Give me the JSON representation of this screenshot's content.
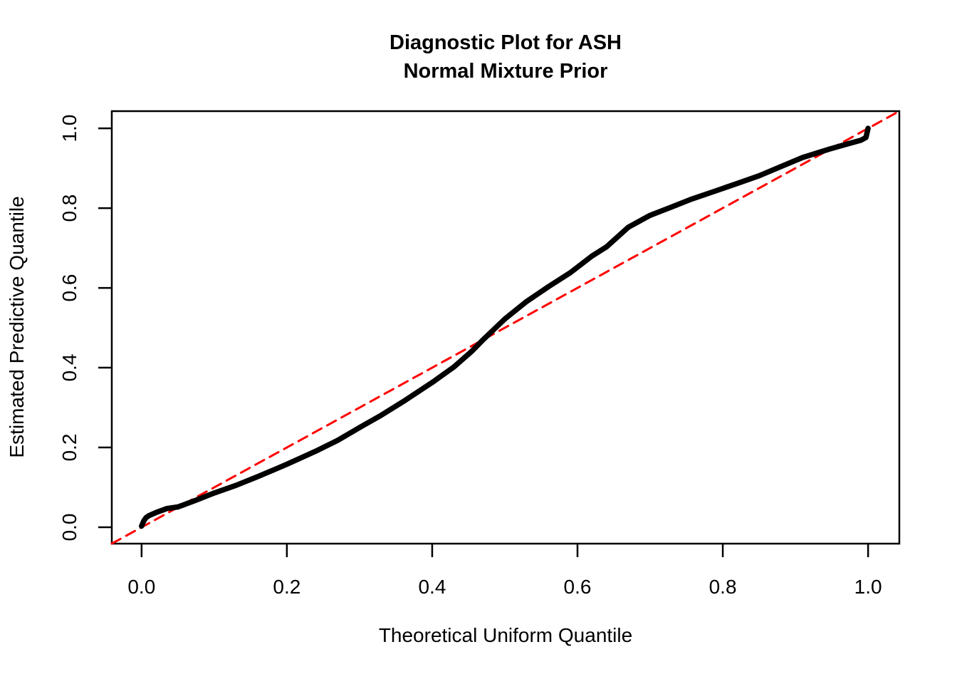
{
  "figure": {
    "background_color": "#FFFFFF",
    "axis_color": "#000000",
    "text_color": "#000000"
  },
  "chart_data": {
    "type": "line",
    "title": "Diagnostic Plot for ASH",
    "subtitle": "Normal Mixture Prior",
    "xlabel": "Theoretical Uniform Quantile",
    "ylabel": "Estimated Predictive Quantile",
    "xlim": [
      -0.041,
      1.043
    ],
    "ylim": [
      -0.041,
      1.043
    ],
    "grid": false,
    "legend": null,
    "x_ticks": {
      "values": [
        0.0,
        0.2,
        0.4,
        0.6,
        0.8,
        1.0
      ],
      "labels": [
        "0.0",
        "0.2",
        "0.4",
        "0.6",
        "0.8",
        "1.0"
      ]
    },
    "y_ticks": {
      "values": [
        0.0,
        0.2,
        0.4,
        0.6,
        0.8,
        1.0
      ],
      "labels": [
        "0.0",
        "0.2",
        "0.4",
        "0.6",
        "0.8",
        "1.0"
      ]
    },
    "series": [
      {
        "name": "identity-reference-line",
        "color": "#FF0000",
        "line_style": "dashed",
        "line_width": 3,
        "points": [
          [
            -0.041,
            -0.041
          ],
          [
            1.043,
            1.043
          ]
        ]
      },
      {
        "name": "estimated-predictive-quantile-curve",
        "color": "#000000",
        "line_style": "solid",
        "line_width": 7.5,
        "points": [
          [
            0.0,
            0.003
          ],
          [
            0.003,
            0.016
          ],
          [
            0.006,
            0.024
          ],
          [
            0.01,
            0.029
          ],
          [
            0.02,
            0.037
          ],
          [
            0.035,
            0.047
          ],
          [
            0.05,
            0.051
          ],
          [
            0.075,
            0.068
          ],
          [
            0.1,
            0.086
          ],
          [
            0.13,
            0.105
          ],
          [
            0.16,
            0.127
          ],
          [
            0.2,
            0.158
          ],
          [
            0.24,
            0.191
          ],
          [
            0.27,
            0.218
          ],
          [
            0.3,
            0.25
          ],
          [
            0.33,
            0.281
          ],
          [
            0.36,
            0.315
          ],
          [
            0.4,
            0.363
          ],
          [
            0.43,
            0.402
          ],
          [
            0.455,
            0.442
          ],
          [
            0.47,
            0.47
          ],
          [
            0.5,
            0.522
          ],
          [
            0.53,
            0.566
          ],
          [
            0.56,
            0.603
          ],
          [
            0.59,
            0.638
          ],
          [
            0.62,
            0.68
          ],
          [
            0.64,
            0.703
          ],
          [
            0.67,
            0.752
          ],
          [
            0.7,
            0.782
          ],
          [
            0.73,
            0.803
          ],
          [
            0.756,
            0.822
          ],
          [
            0.79,
            0.843
          ],
          [
            0.82,
            0.862
          ],
          [
            0.85,
            0.881
          ],
          [
            0.88,
            0.904
          ],
          [
            0.91,
            0.927
          ],
          [
            0.947,
            0.948
          ],
          [
            0.97,
            0.96
          ],
          [
            0.99,
            0.97
          ],
          [
            0.997,
            0.977
          ],
          [
            1.0,
            1.0
          ]
        ]
      }
    ]
  }
}
